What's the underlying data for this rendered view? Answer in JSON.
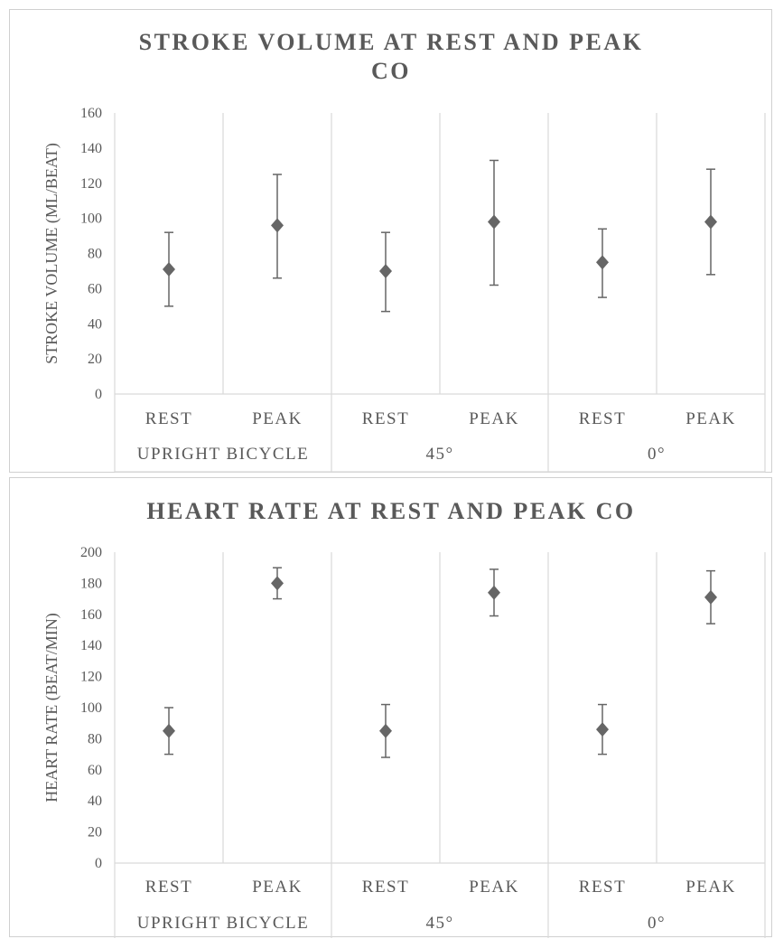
{
  "chart_data": [
    {
      "type": "scatter",
      "title": "STROKE VOLUME AT REST AND PEAK CO",
      "title_lines": [
        "STROKE VOLUME AT REST AND PEAK",
        "CO"
      ],
      "ylabel": "STROKE VOLUME (ML/BEAT)",
      "ylim": [
        0,
        160
      ],
      "yticks": [
        "0",
        "20",
        "40",
        "60",
        "80",
        "100",
        "120",
        "140",
        "160"
      ],
      "groups": [
        "UPRIGHT BICYCLE",
        "45°",
        "0°"
      ],
      "categories": [
        "REST",
        "PEAK",
        "REST",
        "PEAK",
        "REST",
        "PEAK"
      ],
      "values": [
        71,
        96,
        70,
        98,
        75,
        98
      ],
      "error_low": [
        50,
        66,
        47,
        62,
        55,
        68
      ],
      "error_high": [
        92,
        125,
        92,
        133,
        94,
        128
      ],
      "grid": "vertical separators",
      "marker": "diamond",
      "color": "#666666"
    },
    {
      "type": "scatter",
      "title": "HEART RATE AT REST AND PEAK CO",
      "title_lines": [
        "HEART RATE AT REST AND PEAK CO"
      ],
      "ylabel": "HEART RATE (BEAT/MIN)",
      "ylim": [
        0,
        200
      ],
      "yticks": [
        "0",
        "20",
        "40",
        "60",
        "80",
        "100",
        "120",
        "140",
        "160",
        "180",
        "200"
      ],
      "groups": [
        "UPRIGHT BICYCLE",
        "45°",
        "0°"
      ],
      "categories": [
        "REST",
        "PEAK",
        "REST",
        "PEAK",
        "REST",
        "PEAK"
      ],
      "values": [
        85,
        180,
        85,
        174,
        86,
        171
      ],
      "error_low": [
        70,
        170,
        68,
        159,
        70,
        154
      ],
      "error_high": [
        100,
        190,
        102,
        189,
        102,
        188
      ],
      "grid": "vertical separators",
      "marker": "diamond",
      "color": "#666666"
    }
  ]
}
